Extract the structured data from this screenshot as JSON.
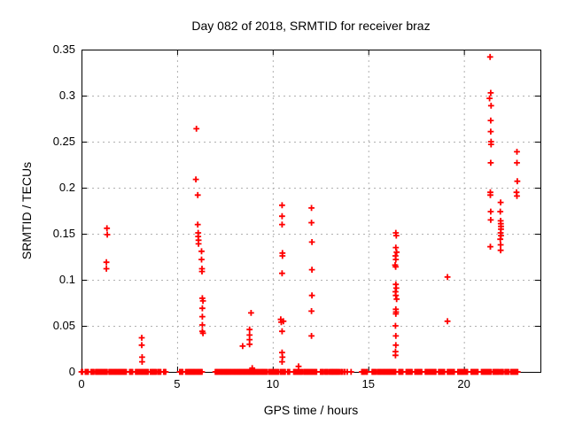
{
  "title": "Day 082 of 2018, SRMTID for receiver braz",
  "xlabel": "GPS time / hours",
  "ylabel": "SRMTID / TECUs",
  "chart_data": {
    "type": "scatter",
    "marker": "plus",
    "marker_color": "#ff0000",
    "grid": true,
    "grid_color": "#b0b0b0",
    "xlim": [
      0,
      24
    ],
    "ylim": [
      0,
      0.35
    ],
    "xticks": [
      0,
      5,
      10,
      15,
      20
    ],
    "xtick_labels": [
      "0",
      "5",
      "10",
      "15",
      "20"
    ],
    "yticks": [
      0,
      0.05,
      0.1,
      0.15,
      0.2,
      0.25,
      0.3,
      0.35
    ],
    "ytick_labels": [
      "0",
      "0.05",
      "0.1",
      "0.15",
      "0.2",
      "0.25",
      "0.3",
      "0.35"
    ],
    "points": [
      [
        1.33,
        0.156
      ],
      [
        1.35,
        0.149
      ],
      [
        1.3,
        0.119
      ],
      [
        1.3,
        0.112
      ],
      [
        3.15,
        0.037
      ],
      [
        3.15,
        0.029
      ],
      [
        3.17,
        0.016
      ],
      [
        3.17,
        0.011
      ],
      [
        6.01,
        0.264
      ],
      [
        5.98,
        0.209
      ],
      [
        6.08,
        0.192
      ],
      [
        6.08,
        0.16
      ],
      [
        6.1,
        0.151
      ],
      [
        6.1,
        0.147
      ],
      [
        6.12,
        0.143
      ],
      [
        6.12,
        0.139
      ],
      [
        6.28,
        0.131
      ],
      [
        6.28,
        0.122
      ],
      [
        6.3,
        0.112
      ],
      [
        6.3,
        0.109
      ],
      [
        6.32,
        0.08
      ],
      [
        6.35,
        0.077
      ],
      [
        6.32,
        0.069
      ],
      [
        6.32,
        0.06
      ],
      [
        6.32,
        0.051
      ],
      [
        6.32,
        0.044
      ],
      [
        6.35,
        0.042
      ],
      [
        8.43,
        0.028
      ],
      [
        8.79,
        0.046
      ],
      [
        8.79,
        0.04
      ],
      [
        8.79,
        0.035
      ],
      [
        8.79,
        0.03
      ],
      [
        8.87,
        0.064
      ],
      [
        8.93,
        0.004
      ],
      [
        10.49,
        0.181
      ],
      [
        10.49,
        0.169
      ],
      [
        10.49,
        0.16
      ],
      [
        10.51,
        0.129
      ],
      [
        10.51,
        0.126
      ],
      [
        10.49,
        0.107
      ],
      [
        10.42,
        0.057
      ],
      [
        10.45,
        0.054
      ],
      [
        10.56,
        0.055
      ],
      [
        10.49,
        0.044
      ],
      [
        10.49,
        0.021
      ],
      [
        10.51,
        0.016
      ],
      [
        10.49,
        0.011
      ],
      [
        11.35,
        0.006
      ],
      [
        12.03,
        0.178
      ],
      [
        12.03,
        0.162
      ],
      [
        12.05,
        0.141
      ],
      [
        12.05,
        0.111
      ],
      [
        12.05,
        0.083
      ],
      [
        12.03,
        0.066
      ],
      [
        12.03,
        0.039
      ],
      [
        16.44,
        0.151
      ],
      [
        16.46,
        0.148
      ],
      [
        16.44,
        0.135
      ],
      [
        16.48,
        0.13
      ],
      [
        16.42,
        0.126
      ],
      [
        16.44,
        0.122
      ],
      [
        16.4,
        0.116
      ],
      [
        16.43,
        0.114
      ],
      [
        16.44,
        0.095
      ],
      [
        16.46,
        0.091
      ],
      [
        16.42,
        0.087
      ],
      [
        16.44,
        0.083
      ],
      [
        16.48,
        0.079
      ],
      [
        16.44,
        0.068
      ],
      [
        16.45,
        0.065
      ],
      [
        16.44,
        0.063
      ],
      [
        16.42,
        0.05
      ],
      [
        16.44,
        0.039
      ],
      [
        16.44,
        0.029
      ],
      [
        16.42,
        0.022
      ],
      [
        16.42,
        0.018
      ],
      [
        19.14,
        0.103
      ],
      [
        19.14,
        0.055
      ],
      [
        21.37,
        0.342
      ],
      [
        21.4,
        0.303
      ],
      [
        21.34,
        0.297
      ],
      [
        21.42,
        0.289
      ],
      [
        21.4,
        0.273
      ],
      [
        21.4,
        0.261
      ],
      [
        21.42,
        0.25
      ],
      [
        21.42,
        0.247
      ],
      [
        21.4,
        0.227
      ],
      [
        21.38,
        0.195
      ],
      [
        21.38,
        0.192
      ],
      [
        21.4,
        0.174
      ],
      [
        21.4,
        0.165
      ],
      [
        21.38,
        0.136
      ],
      [
        21.92,
        0.184
      ],
      [
        21.9,
        0.174
      ],
      [
        21.92,
        0.164
      ],
      [
        21.93,
        0.161
      ],
      [
        21.94,
        0.158
      ],
      [
        21.94,
        0.155
      ],
      [
        21.92,
        0.151
      ],
      [
        21.94,
        0.148
      ],
      [
        21.9,
        0.144
      ],
      [
        21.92,
        0.138
      ],
      [
        21.92,
        0.132
      ],
      [
        22.77,
        0.239
      ],
      [
        22.77,
        0.227
      ],
      [
        22.79,
        0.207
      ],
      [
        22.75,
        0.195
      ],
      [
        22.77,
        0.191
      ]
    ],
    "zero_value_segments": [
      [
        0.0,
        0.07
      ],
      [
        0.2,
        0.36
      ],
      [
        0.5,
        0.66
      ],
      [
        0.74,
        1.36
      ],
      [
        1.44,
        2.36
      ],
      [
        2.52,
        2.67
      ],
      [
        2.83,
        3.52
      ],
      [
        3.6,
        3.9
      ],
      [
        3.99,
        4.14
      ],
      [
        4.3,
        4.4
      ],
      [
        5.14,
        5.3
      ],
      [
        5.45,
        6.3
      ],
      [
        7.0,
        8.4
      ],
      [
        8.45,
        9.7
      ],
      [
        9.8,
        9.95
      ],
      [
        10.0,
        10.3
      ],
      [
        10.4,
        10.65
      ],
      [
        10.78,
        10.88
      ],
      [
        11.1,
        11.56
      ],
      [
        11.63,
        12.17
      ],
      [
        12.19,
        12.33
      ],
      [
        12.5,
        12.65
      ],
      [
        12.73,
        12.88
      ],
      [
        12.96,
        13.11
      ],
      [
        13.15,
        13.35
      ],
      [
        13.4,
        13.5
      ],
      [
        13.58,
        13.66
      ],
      [
        13.73,
        13.81
      ],
      [
        13.9,
        13.94
      ],
      [
        14.1,
        14.14
      ],
      [
        14.66,
        14.81
      ],
      [
        14.89,
        14.97
      ],
      [
        15.2,
        15.43
      ],
      [
        15.48,
        16.44
      ],
      [
        16.6,
        16.83
      ],
      [
        16.98,
        17.29
      ],
      [
        17.44,
        17.83
      ],
      [
        17.98,
        18.53
      ],
      [
        18.68,
        18.99
      ],
      [
        19.14,
        19.53
      ],
      [
        19.68,
        20.22
      ],
      [
        20.38,
        20.76
      ],
      [
        20.92,
        21.46
      ],
      [
        21.53,
        21.84
      ],
      [
        21.9,
        22.08
      ],
      [
        22.15,
        22.38
      ],
      [
        22.46,
        22.85
      ]
    ]
  }
}
